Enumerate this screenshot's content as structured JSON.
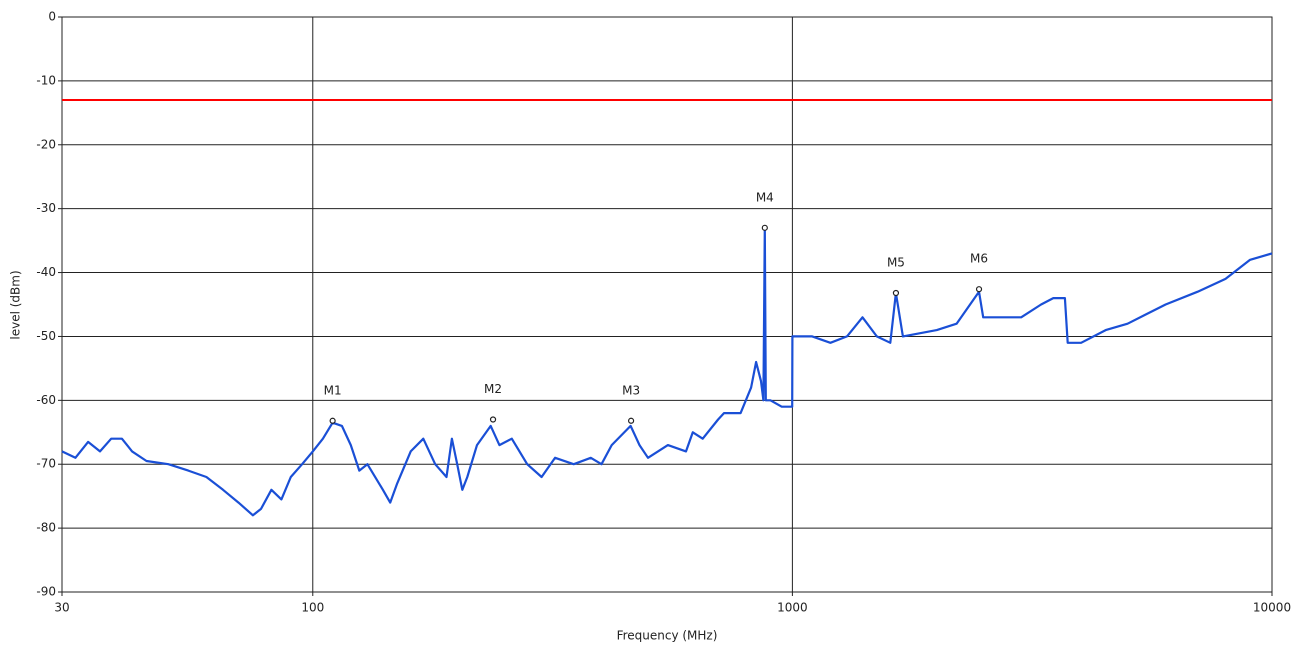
{
  "chart_data": {
    "type": "line",
    "x_label": "Frequency (MHz)",
    "y_label": "level (dBm)",
    "xscale": "log",
    "xlim": [
      30,
      10000
    ],
    "ylim": [
      -90,
      0
    ],
    "xticks": [
      30,
      100,
      1000,
      10000
    ],
    "yticks": [
      0,
      -10,
      -20,
      -30,
      -40,
      -50,
      -60,
      -70,
      -80,
      -90
    ],
    "grid": true,
    "x": [
      30,
      32,
      34,
      36,
      38,
      40,
      42,
      45,
      50,
      55,
      60,
      65,
      70,
      75,
      78,
      82,
      86,
      90,
      95,
      100,
      105,
      110,
      115,
      120,
      125,
      130,
      140,
      145,
      150,
      160,
      170,
      180,
      190,
      195,
      200,
      205,
      210,
      220,
      235,
      245,
      260,
      280,
      300,
      320,
      350,
      380,
      400,
      420,
      460,
      480,
      500,
      550,
      600,
      620,
      650,
      700,
      720,
      780,
      820,
      840,
      860,
      870,
      876,
      880,
      900,
      950,
      999,
      1000,
      1100,
      1200,
      1300,
      1400,
      1500,
      1600,
      1644,
      1700,
      2000,
      2200,
      2450,
      2500,
      3000,
      3300,
      3500,
      3700,
      3750,
      4000,
      4500,
      5000,
      6000,
      7000,
      8000,
      9000,
      10000
    ],
    "series": [
      {
        "color": "#1a4fd6",
        "values": [
          -68,
          -69,
          -66.5,
          -68,
          -66,
          -66,
          -68,
          -69.5,
          -70,
          -71,
          -72,
          -74,
          -76,
          -78,
          -77,
          -74,
          -75.5,
          -72,
          -70,
          -68,
          -66,
          -63.5,
          -64,
          -67,
          -71,
          -70,
          -74,
          -76,
          -73,
          -68,
          -66,
          -70,
          -72,
          -66,
          -70,
          -74,
          -72,
          -67,
          -64,
          -67,
          -66,
          -70,
          -72,
          -69,
          -70,
          -69,
          -70,
          -67,
          -64,
          -67,
          -69,
          -67,
          -68,
          -65,
          -66,
          -63,
          -62,
          -62,
          -58,
          -54,
          -57,
          -60,
          -33,
          -60,
          -60,
          -61,
          -61,
          -50,
          -50,
          -51,
          -50,
          -47,
          -50,
          -51,
          -43.2,
          -50,
          -49,
          -48,
          -43,
          -47,
          -47,
          -45,
          -44,
          -44,
          -51,
          -51,
          -49,
          -48,
          -45,
          -43,
          -41,
          -38,
          -37
        ]
      }
    ],
    "reference_lines": [
      {
        "value": -13,
        "color": "#ff0000"
      }
    ],
    "markers": [
      {
        "label": "M1",
        "x": 110,
        "y": -63.2
      },
      {
        "label": "M2",
        "x": 237.6,
        "y": -63
      },
      {
        "label": "M3",
        "x": 461,
        "y": -63.2
      },
      {
        "label": "M4",
        "x": 876,
        "y": -33
      },
      {
        "label": "M5",
        "x": 1644,
        "y": -43.2
      },
      {
        "label": "M6",
        "x": 2450,
        "y": -42.6
      }
    ]
  }
}
